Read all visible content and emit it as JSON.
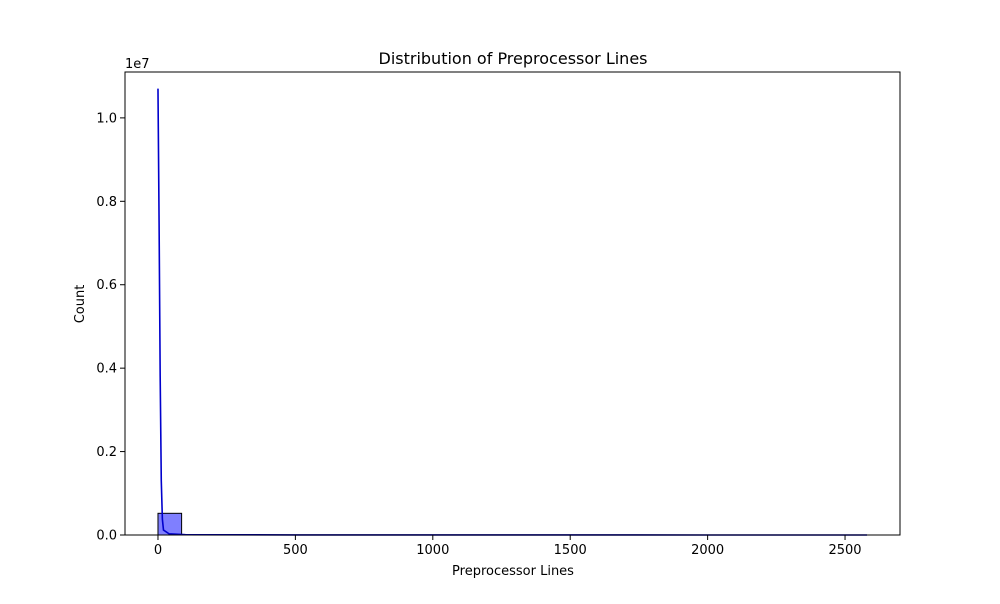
{
  "chart_data": {
    "type": "bar",
    "title": "Distribution of Preprocessor Lines",
    "xlabel": "Preprocessor Lines",
    "ylabel": "Count",
    "y_offset_label": "1e7",
    "xlim": [
      -120,
      2700
    ],
    "ylim": [
      0,
      11100000
    ],
    "x_ticks": [
      0,
      500,
      1000,
      1500,
      2000,
      2500
    ],
    "x_tick_labels": [
      "0",
      "500",
      "1000",
      "1500",
      "2000",
      "2500"
    ],
    "y_ticks": [
      0,
      2000000,
      4000000,
      6000000,
      8000000,
      10000000
    ],
    "y_tick_labels": [
      "0.0",
      "0.2",
      "0.4",
      "0.6",
      "0.8",
      "1.0"
    ],
    "bins": [
      {
        "x0": 0,
        "x1": 86,
        "count": 520000
      }
    ],
    "kde": {
      "x": [
        0,
        4,
        8,
        12,
        16,
        20,
        40,
        100,
        500,
        1000,
        1500,
        2000,
        2580
      ],
      "y": [
        10700000,
        7500000,
        3800000,
        1300000,
        380000,
        120000,
        30000,
        8000,
        1500,
        800,
        400,
        200,
        100
      ]
    },
    "grid": false,
    "bar_color": "#0000ff",
    "bar_opacity": 0.5,
    "line_color": "#0000cc"
  }
}
